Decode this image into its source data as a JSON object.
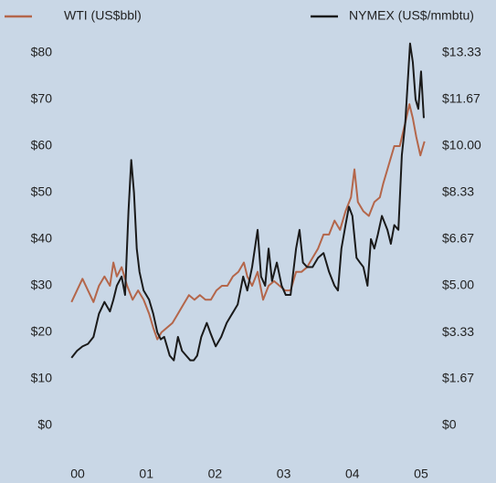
{
  "chart_data": {
    "type": "line",
    "xlim": [
      1999.8,
      2005.2
    ],
    "xticks": [
      {
        "value": 2000,
        "label": "00"
      },
      {
        "value": 2001,
        "label": "01"
      },
      {
        "value": 2002,
        "label": "02"
      },
      {
        "value": 2003,
        "label": "03"
      },
      {
        "value": 2004,
        "label": "04"
      },
      {
        "value": 2005,
        "label": "05"
      }
    ],
    "ylim": [
      0,
      80
    ],
    "yticks": [
      {
        "value": 0,
        "label": "$0"
      },
      {
        "value": 10,
        "label": "$10"
      },
      {
        "value": 20,
        "label": "$20"
      },
      {
        "value": 30,
        "label": "$30"
      },
      {
        "value": 40,
        "label": "$40"
      },
      {
        "value": 50,
        "label": "$50"
      },
      {
        "value": 60,
        "label": "$60"
      },
      {
        "value": 70,
        "label": "$70"
      },
      {
        "value": 80,
        "label": "$80"
      }
    ],
    "y2lim": [
      0,
      13.33
    ],
    "y2ticks": [
      {
        "value": 0,
        "label": "$0"
      },
      {
        "value": 1.67,
        "label": "$1.67"
      },
      {
        "value": 3.33,
        "label": "$3.33"
      },
      {
        "value": 5,
        "label": "$5.00"
      },
      {
        "value": 6.67,
        "label": "$6.67"
      },
      {
        "value": 8.33,
        "label": "$8.33"
      },
      {
        "value": 10,
        "label": "$10.00"
      },
      {
        "value": 11.67,
        "label": "$11.67"
      },
      {
        "value": 13.33,
        "label": "$13.33"
      }
    ],
    "grid": false,
    "legend": "top",
    "series": [
      {
        "name": "WTI (US$bbl)",
        "color": "#b4664a",
        "axis": "y",
        "x": [
          1999.91,
          1999.99,
          2000.07,
          2000.15,
          2000.23,
          2000.31,
          2000.39,
          2000.47,
          2000.52,
          2000.57,
          2000.64,
          2000.72,
          2000.8,
          2000.88,
          2000.96,
          2001.04,
          2001.1,
          2001.16,
          2001.22,
          2001.3,
          2001.38,
          2001.46,
          2001.54,
          2001.62,
          2001.7,
          2001.78,
          2001.86,
          2001.94,
          2002.02,
          2002.1,
          2002.18,
          2002.26,
          2002.34,
          2002.42,
          2002.47,
          2002.54,
          2002.62,
          2002.7,
          2002.78,
          2002.86,
          2002.94,
          2003.02,
          2003.1,
          2003.18,
          2003.26,
          2003.34,
          2003.42,
          2003.5,
          2003.58,
          2003.66,
          2003.74,
          2003.82,
          2003.9,
          2003.98,
          2004.03,
          2004.08,
          2004.16,
          2004.24,
          2004.32,
          2004.4,
          2004.45,
          2004.53,
          2004.61,
          2004.69,
          2004.77,
          2004.83,
          2004.88,
          2004.93,
          2004.99,
          2005.05
        ],
        "values": [
          26.5,
          29,
          31.5,
          29,
          26.5,
          30,
          32,
          30,
          35,
          32,
          34,
          30,
          27,
          29,
          27,
          24,
          21,
          18.5,
          20,
          21,
          22,
          24,
          26,
          28,
          27,
          28,
          27,
          27,
          29,
          30,
          30,
          32,
          33,
          35,
          32,
          30,
          33,
          27,
          30,
          31,
          30,
          29,
          29,
          33,
          33,
          34,
          36,
          38,
          41,
          41,
          44,
          42,
          46,
          49,
          55,
          48,
          46,
          45,
          48,
          49,
          52,
          56,
          60,
          60,
          65,
          69,
          66,
          62,
          58,
          61
        ]
      },
      {
        "name": "NYMEX (US$/mmbtu)",
        "color": "#1a1a1a",
        "axis": "y2",
        "x": [
          1999.91,
          1999.99,
          2000.07,
          2000.15,
          2000.23,
          2000.31,
          2000.39,
          2000.47,
          2000.52,
          2000.57,
          2000.64,
          2000.69,
          2000.74,
          2000.78,
          2000.82,
          2000.86,
          2000.9,
          2000.96,
          2001.04,
          2001.1,
          2001.16,
          2001.21,
          2001.26,
          2001.34,
          2001.4,
          2001.46,
          2001.52,
          2001.58,
          2001.64,
          2001.69,
          2001.74,
          2001.8,
          2001.88,
          2001.93,
          2002.01,
          2002.09,
          2002.17,
          2002.25,
          2002.33,
          2002.41,
          2002.47,
          2002.54,
          2002.62,
          2002.67,
          2002.73,
          2002.78,
          2002.83,
          2002.9,
          2002.97,
          2003.03,
          2003.1,
          2003.18,
          2003.23,
          2003.28,
          2003.34,
          2003.42,
          2003.5,
          2003.58,
          2003.66,
          2003.74,
          2003.79,
          2003.84,
          2003.9,
          2003.95,
          2004.0,
          2004.06,
          2004.11,
          2004.16,
          2004.22,
          2004.27,
          2004.32,
          2004.37,
          2004.43,
          2004.51,
          2004.56,
          2004.61,
          2004.67,
          2004.72,
          2004.77,
          2004.84,
          2004.88,
          2004.92,
          2004.96,
          2005.0,
          2005.04
        ],
        "values": [
          2.42,
          2.67,
          2.83,
          2.92,
          3.17,
          4.0,
          4.42,
          4.08,
          4.5,
          5.0,
          5.33,
          4.67,
          7.67,
          9.5,
          8.33,
          6.33,
          5.5,
          4.83,
          4.5,
          4.0,
          3.33,
          3.08,
          3.17,
          2.5,
          2.33,
          3.17,
          2.67,
          2.5,
          2.33,
          2.33,
          2.5,
          3.17,
          3.67,
          3.33,
          2.83,
          3.17,
          3.67,
          4.0,
          4.33,
          5.33,
          4.83,
          5.67,
          7.0,
          5.33,
          5.0,
          6.33,
          5.17,
          5.83,
          5.0,
          4.67,
          4.67,
          6.33,
          7.0,
          5.83,
          5.67,
          5.67,
          6.0,
          6.17,
          5.5,
          5.0,
          4.83,
          6.33,
          7.17,
          7.83,
          7.5,
          6.0,
          5.83,
          5.67,
          5.0,
          6.67,
          6.33,
          6.83,
          7.5,
          7.0,
          6.5,
          7.17,
          7.0,
          9.67,
          10.83,
          13.67,
          13.0,
          11.67,
          11.33,
          12.67,
          11.0
        ]
      }
    ]
  }
}
